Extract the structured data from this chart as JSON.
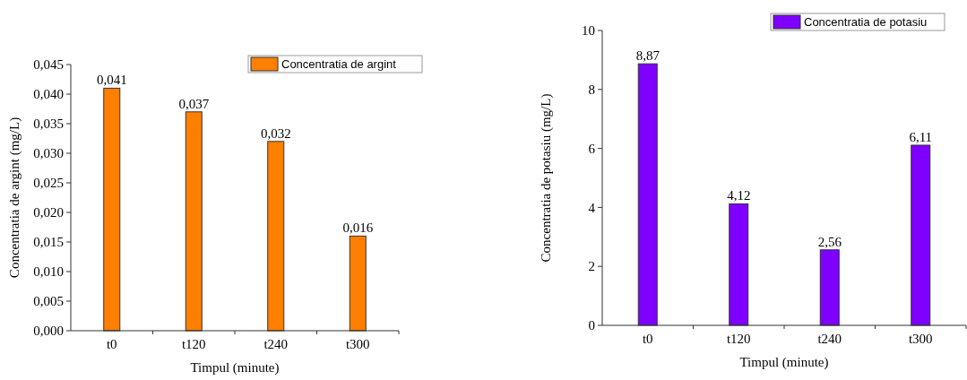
{
  "chart_data": [
    {
      "type": "bar",
      "xlabel": "Timpul (minute)",
      "ylabel": "Concentratia de argint (mg/L)",
      "categories": [
        "t0",
        "t120",
        "t240",
        "t300"
      ],
      "series": [
        {
          "name": "Concentratia de argint",
          "color": "#ff7f00",
          "values": [
            0.041,
            0.037,
            0.032,
            0.016
          ],
          "value_labels": [
            "0,041",
            "0,037",
            "0,032",
            "0,016"
          ]
        }
      ],
      "ylim": [
        0,
        0.045
      ],
      "yticks": [
        {
          "value": 0,
          "label": "0,000"
        },
        {
          "value": 0.005,
          "label": "0,005"
        },
        {
          "value": 0.01,
          "label": "0,010"
        },
        {
          "value": 0.015,
          "label": "0,015"
        },
        {
          "value": 0.02,
          "label": "0,020"
        },
        {
          "value": 0.025,
          "label": "0,025"
        },
        {
          "value": 0.03,
          "label": "0,030"
        },
        {
          "value": 0.035,
          "label": "0,035"
        },
        {
          "value": 0.04,
          "label": "0,040"
        },
        {
          "value": 0.045,
          "label": "0,045"
        }
      ],
      "legend": "top right",
      "grid": false
    },
    {
      "type": "bar",
      "xlabel": "Timpul (minute)",
      "ylabel": "Concentratia de potasiu (mg/L)",
      "categories": [
        "t0",
        "t120",
        "t240",
        "t300"
      ],
      "series": [
        {
          "name": "Concentratia de potasiu",
          "color": "#7f00ff",
          "values": [
            8.87,
            4.12,
            2.56,
            6.11
          ],
          "value_labels": [
            "8,87",
            "4,12",
            "2,56",
            "6,11"
          ]
        }
      ],
      "ylim": [
        0,
        10
      ],
      "yticks": [
        0,
        2,
        4,
        6,
        8,
        10
      ],
      "legend": "top right",
      "grid": false
    }
  ]
}
